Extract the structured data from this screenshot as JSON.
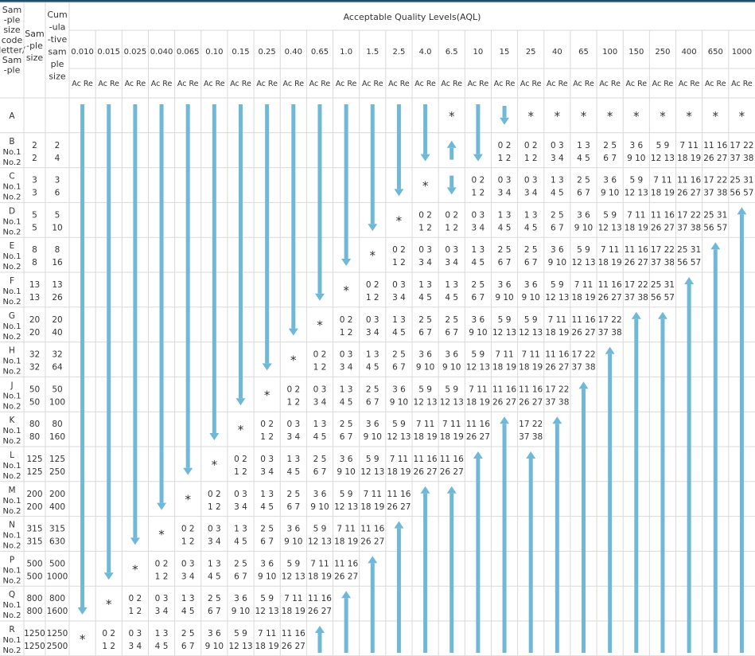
{
  "header": {
    "code_letter": [
      "Sam",
      "-ple",
      "size",
      "code",
      "letter/",
      "Sam",
      "-ple"
    ],
    "sample_size": [
      "Sam",
      "-ple",
      "size"
    ],
    "cumulative": [
      "Cum",
      "-ula",
      "-tive",
      "sam",
      "ple",
      "size"
    ],
    "aql_title": "Acceptable Quality Levels(AQL)",
    "acre": "Ac Re"
  },
  "aql_levels": [
    "0.010",
    "0.015",
    "0.025",
    "0.040",
    "0.065",
    "0.10",
    "0.15",
    "0.25",
    "0.40",
    "0.65",
    "1.0",
    "1.5",
    "2.5",
    "4.0",
    "6.5",
    "10",
    "15",
    "25",
    "40",
    "65",
    "100",
    "150",
    "250",
    "400",
    "650",
    "1000"
  ],
  "no1": "No.1",
  "no2": "No.2",
  "star": "*",
  "rows": [
    {
      "letter": "A",
      "s": [
        "",
        ""
      ],
      "c": [
        "",
        ""
      ]
    },
    {
      "letter": "B",
      "s": [
        "2",
        "2"
      ],
      "c": [
        "2",
        "4"
      ]
    },
    {
      "letter": "C",
      "s": [
        "3",
        "3"
      ],
      "c": [
        "3",
        "6"
      ]
    },
    {
      "letter": "D",
      "s": [
        "5",
        "5"
      ],
      "c": [
        "5",
        "10"
      ]
    },
    {
      "letter": "E",
      "s": [
        "8",
        "8"
      ],
      "c": [
        "8",
        "16"
      ]
    },
    {
      "letter": "F",
      "s": [
        "13",
        "13"
      ],
      "c": [
        "13",
        "26"
      ]
    },
    {
      "letter": "G",
      "s": [
        "20",
        "20"
      ],
      "c": [
        "20",
        "40"
      ]
    },
    {
      "letter": "H",
      "s": [
        "32",
        "32"
      ],
      "c": [
        "32",
        "64"
      ]
    },
    {
      "letter": "J",
      "s": [
        "50",
        "50"
      ],
      "c": [
        "50",
        "100"
      ]
    },
    {
      "letter": "K",
      "s": [
        "80",
        "80"
      ],
      "c": [
        "80",
        "160"
      ]
    },
    {
      "letter": "L",
      "s": [
        "125",
        "125"
      ],
      "c": [
        "125",
        "250"
      ]
    },
    {
      "letter": "M",
      "s": [
        "200",
        "200"
      ],
      "c": [
        "200",
        "400"
      ]
    },
    {
      "letter": "N",
      "s": [
        "315",
        "315"
      ],
      "c": [
        "315",
        "630"
      ]
    },
    {
      "letter": "P",
      "s": [
        "500",
        "500"
      ],
      "c": [
        "500",
        "1000"
      ]
    },
    {
      "letter": "Q",
      "s": [
        "800",
        "800"
      ],
      "c": [
        "800",
        "1600"
      ]
    },
    {
      "letter": "R",
      "s": [
        "1250",
        "1250"
      ],
      "c": [
        "1250",
        "2500"
      ]
    }
  ],
  "ac_re_sequence": [
    [
      "0 2",
      "1 2"
    ],
    [
      "0 3",
      "3 4"
    ],
    [
      "1 3",
      "4 5"
    ],
    [
      "2 5",
      "6 7"
    ],
    [
      "3 6",
      "9 10"
    ],
    [
      "5 9",
      "12 13"
    ],
    [
      "7 11",
      "18 19"
    ],
    [
      "11 16",
      "26 27"
    ],
    [
      "17 22",
      "37 38"
    ],
    [
      "25 31",
      "56 57"
    ]
  ],
  "arrow_color": "#6fb8d8",
  "border_color": "#d9d9d9"
}
